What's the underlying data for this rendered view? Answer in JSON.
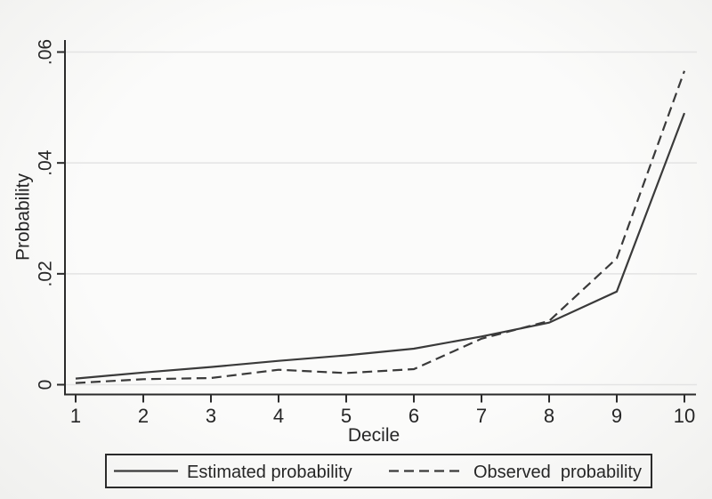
{
  "figure": {
    "background_color": "#f7f7f5",
    "axis_color": "#2b2b2b",
    "grid_color": "#e3e3e3",
    "line_color": "#3a3a3a",
    "text_color": "#262626",
    "legend_border_color": "#2b2b2b"
  },
  "chart_data": {
    "type": "line",
    "title": "",
    "xlabel": "Decile",
    "ylabel": "Probability",
    "x": [
      1,
      2,
      3,
      4,
      5,
      6,
      7,
      8,
      9,
      10
    ],
    "x_tick_labels": [
      "1",
      "2",
      "3",
      "4",
      "5",
      "6",
      "7",
      "8",
      "9",
      "10"
    ],
    "y_ticks": [
      {
        "value": 0,
        "label": "0"
      },
      {
        "value": 0.02,
        "label": ".02"
      },
      {
        "value": 0.04,
        "label": ".04"
      },
      {
        "value": 0.06,
        "label": ".06"
      }
    ],
    "xlim": [
      1,
      10
    ],
    "ylim": [
      0,
      0.06
    ],
    "grid": "horizontal-only",
    "legend_position": "bottom",
    "series": [
      {
        "name": "Estimated probability",
        "line_style": "solid",
        "values": [
          0.0011,
          0.0022,
          0.0032,
          0.0043,
          0.0053,
          0.0065,
          0.0087,
          0.0112,
          0.0168,
          0.049
        ]
      },
      {
        "name": "Observed probability",
        "line_style": "dashed",
        "values": [
          0.0003,
          0.001,
          0.0012,
          0.0027,
          0.0021,
          0.0028,
          0.0083,
          0.0115,
          0.0228,
          0.0566
        ]
      }
    ]
  },
  "legend": {
    "items": [
      {
        "label": "Estimated probability",
        "style": "solid"
      },
      {
        "label": "Observed  probability",
        "style": "dashed"
      }
    ]
  }
}
